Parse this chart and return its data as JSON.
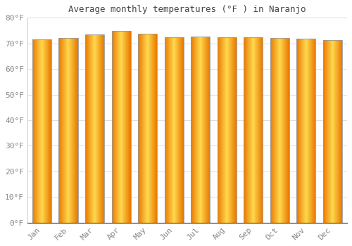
{
  "title": "Average monthly temperatures (°F ) in Naranjo",
  "months": [
    "Jan",
    "Feb",
    "Mar",
    "Apr",
    "May",
    "Jun",
    "Jul",
    "Aug",
    "Sep",
    "Oct",
    "Nov",
    "Dec"
  ],
  "values": [
    71.5,
    72.0,
    73.5,
    74.8,
    73.8,
    72.5,
    72.8,
    72.5,
    72.3,
    72.0,
    71.8,
    71.3
  ],
  "bar_color_center": "#FFD84D",
  "bar_color_edge": "#E87800",
  "bar_outline_color": "#999999",
  "background_color": "#FFFFFF",
  "grid_color": "#DDDDDD",
  "tick_label_color": "#888888",
  "title_color": "#444444",
  "ylim": [
    0,
    80
  ],
  "yticks": [
    0,
    10,
    20,
    30,
    40,
    50,
    60,
    70,
    80
  ],
  "ytick_labels": [
    "0°F",
    "10°F",
    "20°F",
    "30°F",
    "40°F",
    "50°F",
    "60°F",
    "70°F",
    "80°F"
  ],
  "bar_width": 0.72
}
